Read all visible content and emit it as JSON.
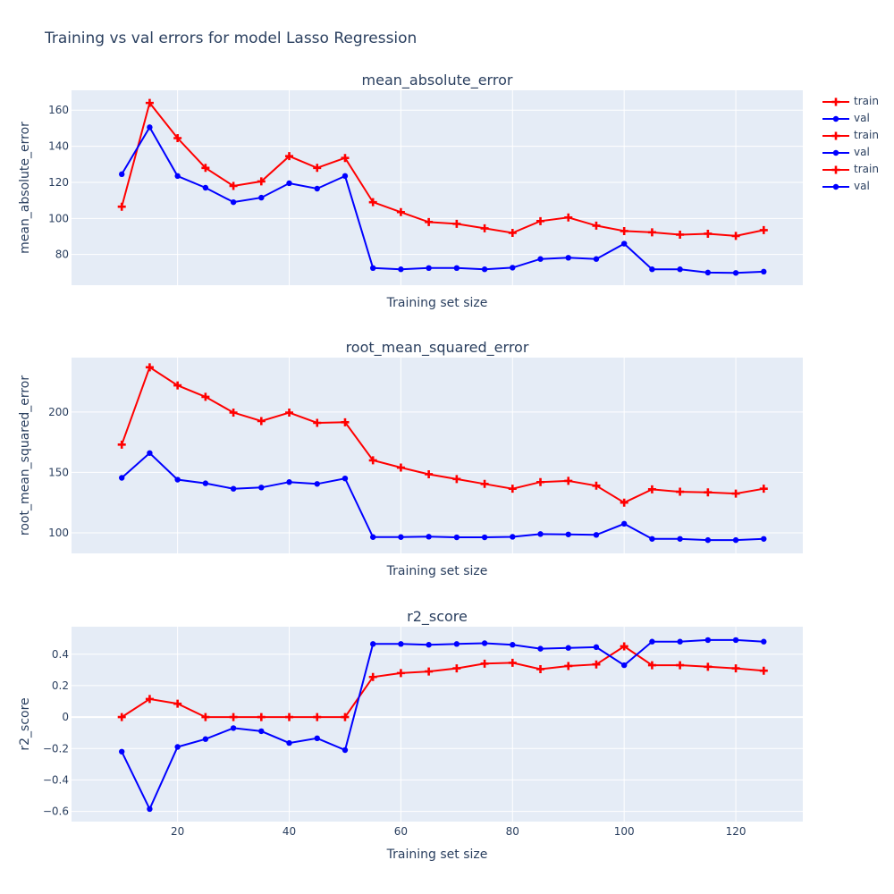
{
  "title": "Training vs val errors for model Lasso Regression",
  "colors": {
    "train": "#ff0000",
    "val": "#0000ff",
    "plot_bg": "#e5ecf6",
    "grid": "#ffffff",
    "text": "#2a3f5f"
  },
  "legend": [
    {
      "label": "train",
      "series": "train"
    },
    {
      "label": "val",
      "series": "val"
    },
    {
      "label": "train",
      "series": "train"
    },
    {
      "label": "val",
      "series": "val"
    },
    {
      "label": "train",
      "series": "train"
    },
    {
      "label": "val",
      "series": "val"
    }
  ],
  "chart_data": [
    {
      "type": "line",
      "title": "mean_absolute_error",
      "xlabel": "Training set size",
      "ylabel": "mean_absolute_error",
      "xlim": [
        1,
        132
      ],
      "ylim": [
        63,
        171
      ],
      "xticks": [
        20,
        40,
        60,
        80,
        100,
        120
      ],
      "yticks": [
        80,
        100,
        120,
        140,
        160
      ],
      "grid": true,
      "x": [
        10,
        15,
        20,
        25,
        30,
        35,
        40,
        45,
        50,
        55,
        60,
        65,
        70,
        75,
        80,
        85,
        90,
        95,
        100,
        105,
        110,
        115,
        120,
        125
      ],
      "series": [
        {
          "name": "train",
          "marker": "cross",
          "values": [
            106.5,
            164.0,
            144.5,
            128.0,
            118.0,
            120.5,
            134.5,
            128.0,
            133.5,
            109.0,
            103.5,
            98.0,
            97.0,
            94.5,
            92.0,
            98.5,
            100.5,
            96.0,
            93.0,
            92.3,
            91.0,
            91.5,
            90.3,
            93.5
          ]
        },
        {
          "name": "val",
          "marker": "circle",
          "values": [
            124.5,
            150.5,
            123.5,
            117.0,
            109.0,
            111.5,
            119.5,
            116.5,
            123.5,
            72.5,
            71.8,
            72.5,
            72.5,
            71.8,
            72.7,
            77.5,
            78.2,
            77.5,
            86.0,
            71.8,
            71.8,
            70.0,
            69.8,
            70.5
          ]
        }
      ]
    },
    {
      "type": "line",
      "title": "root_mean_squared_error",
      "xlabel": "Training set size",
      "ylabel": "root_mean_squared_error",
      "xlim": [
        1,
        132
      ],
      "ylim": [
        83,
        245
      ],
      "xticks": [
        20,
        40,
        60,
        80,
        100,
        120
      ],
      "yticks": [
        100,
        150,
        200
      ],
      "grid": true,
      "x": [
        10,
        15,
        20,
        25,
        30,
        35,
        40,
        45,
        50,
        55,
        60,
        65,
        70,
        75,
        80,
        85,
        90,
        95,
        100,
        105,
        110,
        115,
        120,
        125
      ],
      "series": [
        {
          "name": "train",
          "marker": "cross",
          "values": [
            173.0,
            237.0,
            222.0,
            212.5,
            199.5,
            192.5,
            199.5,
            191.0,
            191.5,
            160.0,
            154.0,
            148.5,
            144.5,
            140.5,
            136.5,
            142.0,
            143.0,
            139.0,
            125.0,
            136.0,
            134.0,
            133.5,
            132.5,
            136.5
          ]
        },
        {
          "name": "val",
          "marker": "circle",
          "values": [
            145.5,
            166.0,
            144.0,
            141.0,
            136.5,
            137.5,
            142.0,
            140.5,
            145.0,
            96.5,
            96.5,
            96.8,
            96.3,
            96.3,
            96.7,
            99.0,
            98.7,
            98.3,
            107.5,
            95.0,
            95.0,
            94.0,
            94.0,
            95.0
          ]
        }
      ]
    },
    {
      "type": "line",
      "title": "r2_score",
      "xlabel": "Training set size",
      "ylabel": "r2_score",
      "xlim": [
        1,
        132
      ],
      "ylim": [
        -0.665,
        0.575
      ],
      "xticks": [
        20,
        40,
        60,
        80,
        100,
        120
      ],
      "yticks": [
        -0.6,
        -0.4,
        -0.2,
        0,
        0.2,
        0.4
      ],
      "ytick_labels": [
        "−0.6",
        "−0.4",
        "−0.2",
        "0",
        "0.2",
        "0.4"
      ],
      "grid": true,
      "x": [
        10,
        15,
        20,
        25,
        30,
        35,
        40,
        45,
        50,
        55,
        60,
        65,
        70,
        75,
        80,
        85,
        90,
        95,
        100,
        105,
        110,
        115,
        120,
        125
      ],
      "series": [
        {
          "name": "train",
          "marker": "cross",
          "values": [
            0.0,
            0.115,
            0.085,
            0.0,
            0.0,
            0.0,
            0.0,
            0.0,
            0.0,
            0.255,
            0.28,
            0.29,
            0.31,
            0.34,
            0.345,
            0.305,
            0.325,
            0.335,
            0.45,
            0.33,
            0.33,
            0.32,
            0.31,
            0.295
          ]
        },
        {
          "name": "val",
          "marker": "circle",
          "values": [
            -0.22,
            -0.585,
            -0.19,
            -0.14,
            -0.07,
            -0.09,
            -0.165,
            -0.135,
            -0.21,
            0.465,
            0.465,
            0.46,
            0.465,
            0.47,
            0.46,
            0.435,
            0.44,
            0.445,
            0.33,
            0.48,
            0.48,
            0.49,
            0.49,
            0.48
          ]
        }
      ]
    }
  ]
}
